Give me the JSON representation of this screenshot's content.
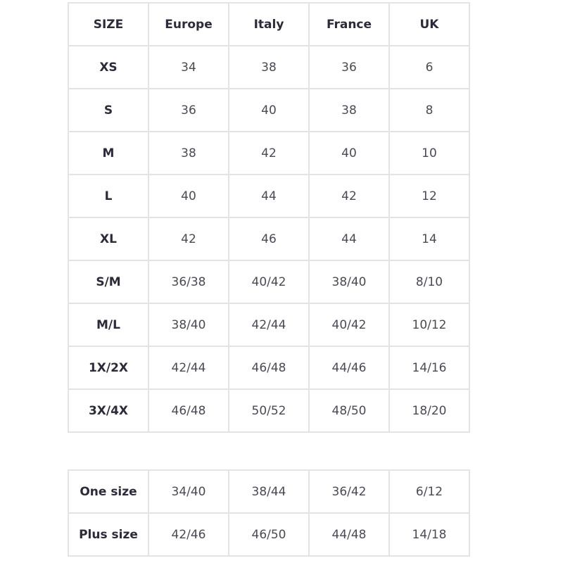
{
  "header": [
    "SIZE",
    "Europe",
    "Italy",
    "France",
    "UK"
  ],
  "main_rows": [
    [
      "XS",
      "34",
      "38",
      "36",
      "6"
    ],
    [
      "S",
      "36",
      "40",
      "38",
      "8"
    ],
    [
      "M",
      "38",
      "42",
      "40",
      "10"
    ],
    [
      "L",
      "40",
      "44",
      "42",
      "12"
    ],
    [
      "XL",
      "42",
      "46",
      "44",
      "14"
    ],
    [
      "S/M",
      "36/38",
      "40/42",
      "38/40",
      "8/10"
    ],
    [
      "M/L",
      "38/40",
      "42/44",
      "40/42",
      "10/12"
    ],
    [
      "1X/2X",
      "42/44",
      "46/48",
      "44/46",
      "14/16"
    ],
    [
      "3X/4X",
      "46/48",
      "50/52",
      "48/50",
      "18/20"
    ]
  ],
  "extra_rows": [
    [
      "One size",
      "34/40",
      "38/44",
      "36/42",
      "6/12"
    ],
    [
      "Plus size",
      "42/46",
      "46/50",
      "44/48",
      "14/18"
    ]
  ]
}
